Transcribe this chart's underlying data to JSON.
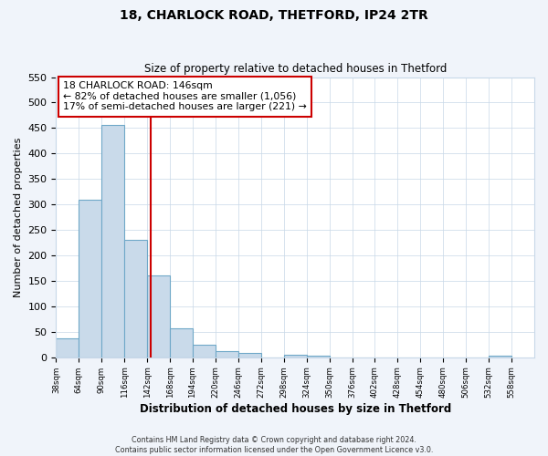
{
  "title": "18, CHARLOCK ROAD, THETFORD, IP24 2TR",
  "subtitle": "Size of property relative to detached houses in Thetford",
  "xlabel": "Distribution of detached houses by size in Thetford",
  "ylabel": "Number of detached properties",
  "bar_edges": [
    38,
    64,
    90,
    116,
    142,
    168,
    194,
    220,
    246,
    272,
    298,
    324,
    350,
    376,
    402,
    428,
    454,
    480,
    506,
    532,
    558
  ],
  "bar_heights": [
    38,
    310,
    456,
    230,
    160,
    57,
    25,
    12,
    9,
    0,
    5,
    4,
    0,
    0,
    0,
    0,
    0,
    0,
    0,
    3
  ],
  "bar_color": "#c9daea",
  "bar_edge_color": "#6fa8c8",
  "vline_x": 146,
  "vline_color": "#cc0000",
  "ylim": [
    0,
    550
  ],
  "yticks": [
    0,
    50,
    100,
    150,
    200,
    250,
    300,
    350,
    400,
    450,
    500,
    550
  ],
  "annotation_line1": "18 CHARLOCK ROAD: 146sqm",
  "annotation_line2": "← 82% of detached houses are smaller (1,056)",
  "annotation_line3": "17% of semi-detached houses are larger (221) →",
  "annotation_box_color": "#cc0000",
  "footer_line1": "Contains HM Land Registry data © Crown copyright and database right 2024.",
  "footer_line2": "Contains public sector information licensed under the Open Government Licence v3.0.",
  "fig_bg_color": "#f0f4fa",
  "axes_bg_color": "#ffffff",
  "grid_color": "#c8d8e8"
}
